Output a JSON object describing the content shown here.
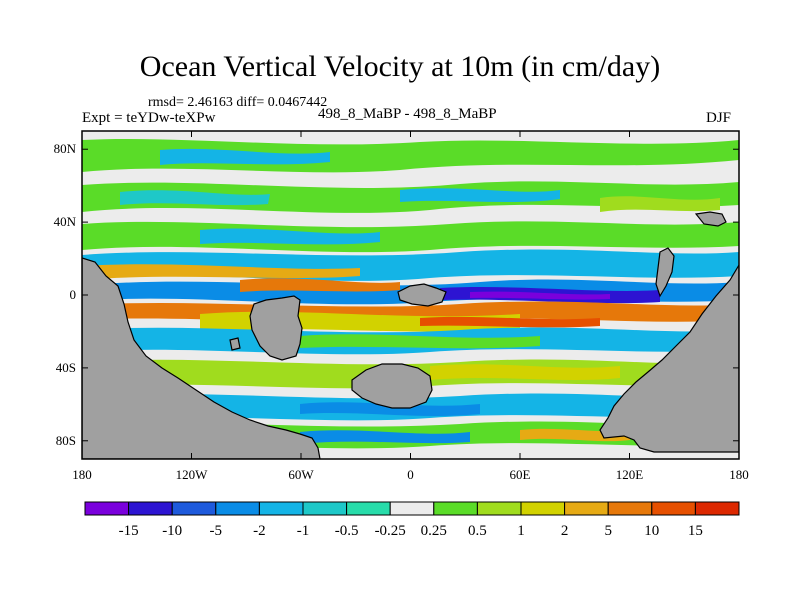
{
  "header": {
    "title": "Ocean Vertical Velocity at 10m (in cm/day)",
    "stats": "rmsd= 2.46163 diff= 0.0467442",
    "expt": "Expt = teYDw-teXPw",
    "runs": "498_8_MaBP - 498_8_MaBP",
    "season": "DJF"
  },
  "map": {
    "x_ticks": [
      "180",
      "120W",
      "60W",
      "0",
      "60E",
      "120E",
      "180"
    ],
    "y_ticks": [
      "80N",
      "40N",
      "0",
      "40S",
      "80S"
    ],
    "land_color": "#a0a0a0",
    "zero_band_color": "#ececec"
  },
  "colorbar": {
    "labels": [
      "-15",
      "-10",
      "-5",
      "-2",
      "-1",
      "-0.5",
      "-0.25",
      "0.25",
      "0.5",
      "1",
      "2",
      "5",
      "10",
      "15"
    ],
    "colors": [
      "#7a00dc",
      "#2d14d2",
      "#1e5adc",
      "#0a8ce6",
      "#14b4e6",
      "#1ec8c8",
      "#28dcaa",
      "#ececec",
      "#5adc28",
      "#a0dc1e",
      "#d2d200",
      "#e6aa14",
      "#e6780a",
      "#e65000",
      "#dc2800"
    ]
  }
}
